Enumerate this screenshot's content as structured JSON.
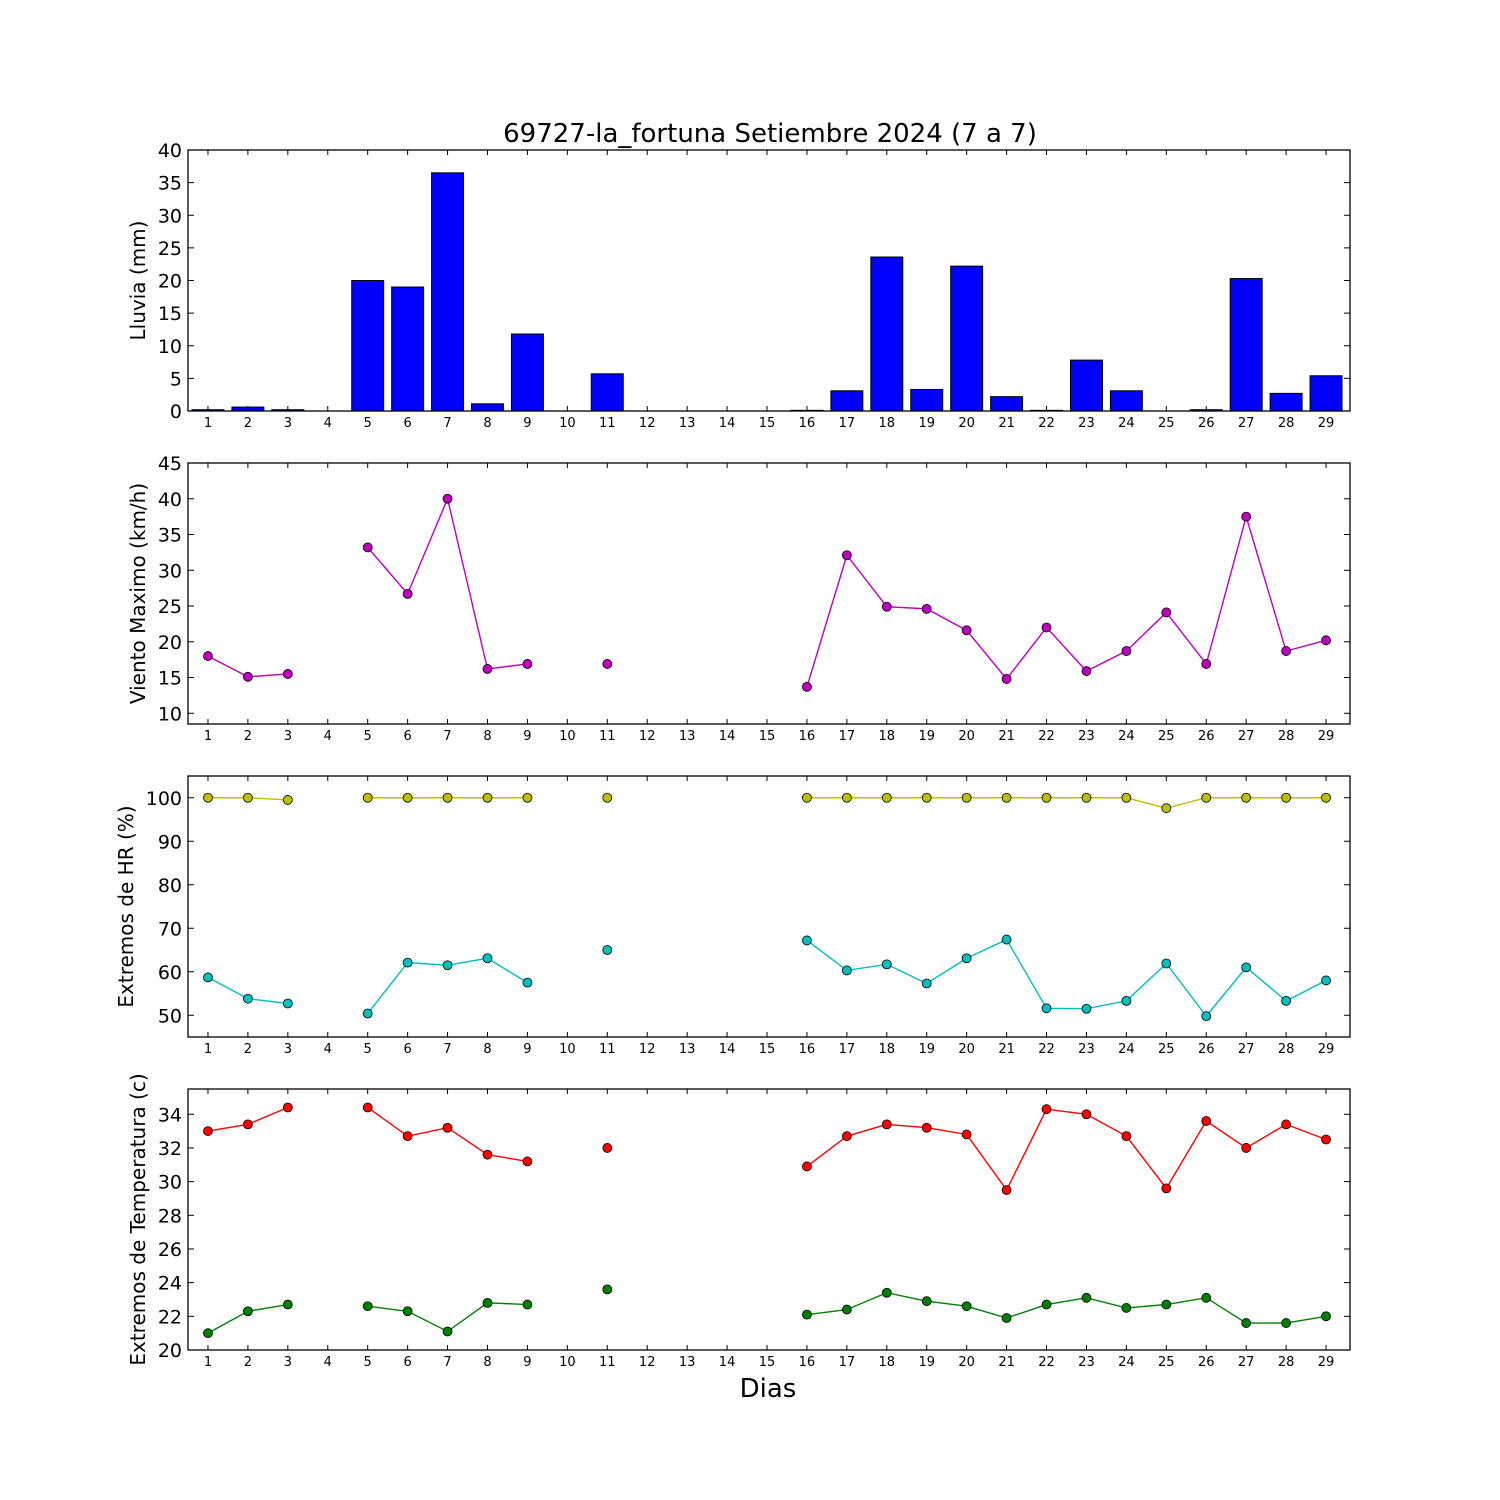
{
  "chart_data": {
    "title": "69727-la_fortuna Setiembre 2024  (7 a 7)",
    "xlabel": "Dias",
    "days": [
      1,
      2,
      3,
      4,
      5,
      6,
      7,
      8,
      9,
      10,
      11,
      12,
      13,
      14,
      15,
      16,
      17,
      18,
      19,
      20,
      21,
      22,
      23,
      24,
      25,
      26,
      27,
      28,
      29
    ],
    "panels": [
      {
        "type": "bar",
        "ylabel": "Lluvia (mm)",
        "ylim": [
          0,
          40
        ],
        "yticks": [
          0,
          5,
          10,
          15,
          20,
          25,
          30,
          35,
          40
        ],
        "series": [
          {
            "color": "#0000ff",
            "values": [
              0.2,
              0.6,
              0.2,
              0,
              20,
              19,
              36.5,
              1.1,
              11.8,
              0,
              5.7,
              0,
              0,
              0,
              0,
              0.1,
              3.1,
              23.6,
              3.3,
              22.2,
              2.2,
              0.1,
              7.8,
              3.1,
              0,
              0.2,
              20.3,
              2.7,
              5.4
            ]
          }
        ]
      },
      {
        "type": "line",
        "ylabel": "Viento Maximo (km/h)",
        "ylim": [
          8.5,
          45
        ],
        "yticks": [
          10,
          15,
          20,
          25,
          30,
          35,
          40,
          45
        ],
        "series": [
          {
            "color": "#bf00bf",
            "values": [
              18,
              15.1,
              15.5,
              null,
              33.2,
              26.7,
              40,
              16.2,
              16.9,
              null,
              16.9,
              null,
              null,
              null,
              null,
              13.7,
              32.1,
              24.9,
              24.6,
              21.6,
              14.8,
              22,
              15.9,
              18.7,
              24.1,
              16.9,
              37.5,
              18.7,
              20.2
            ]
          }
        ]
      },
      {
        "type": "line",
        "ylabel": "Extremos de HR (%)",
        "ylim": [
          45,
          105
        ],
        "yticks": [
          50,
          60,
          70,
          80,
          90,
          100
        ],
        "series": [
          {
            "color": "#bfbf00",
            "values": [
              100,
              100,
              99.5,
              null,
              100,
              100,
              100,
              100,
              100,
              null,
              100,
              null,
              null,
              null,
              null,
              100,
              100,
              100,
              100,
              100,
              100,
              100,
              100,
              100,
              97.6,
              100,
              100,
              100,
              100
            ]
          },
          {
            "color": "#00bfbf",
            "values": [
              58.7,
              53.8,
              52.7,
              null,
              50.4,
              62.1,
              61.5,
              63.1,
              57.5,
              null,
              65,
              null,
              null,
              null,
              null,
              67.2,
              60.3,
              61.7,
              57.3,
              63.1,
              67.4,
              51.6,
              51.5,
              53.3,
              61.9,
              49.8,
              61,
              53.3,
              58
            ]
          }
        ]
      },
      {
        "type": "line",
        "ylabel": "Extremos de Temperatura (c)",
        "ylim": [
          20,
          35.5
        ],
        "yticks": [
          20,
          22,
          24,
          26,
          28,
          30,
          32,
          34
        ],
        "series": [
          {
            "color": "#ff0000",
            "values": [
              33,
              33.4,
              34.4,
              null,
              34.4,
              32.7,
              33.2,
              31.6,
              31.2,
              null,
              32,
              null,
              null,
              null,
              null,
              30.9,
              32.7,
              33.4,
              33.2,
              32.8,
              29.5,
              34.3,
              34,
              32.7,
              29.6,
              33.6,
              32,
              33.4,
              32.5
            ]
          },
          {
            "color": "#008000",
            "values": [
              21,
              22.3,
              22.7,
              null,
              22.6,
              22.3,
              21.1,
              22.8,
              22.7,
              null,
              23.6,
              null,
              null,
              null,
              null,
              22.1,
              22.4,
              23.4,
              22.9,
              22.6,
              21.9,
              22.7,
              23.1,
              22.5,
              22.7,
              23.1,
              21.6,
              21.6,
              22
            ]
          }
        ]
      }
    ]
  }
}
